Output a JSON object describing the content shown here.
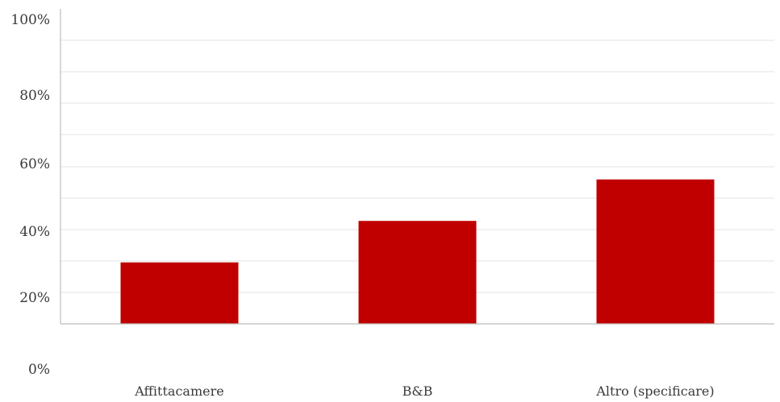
{
  "chart_data": {
    "type": "bar",
    "categories": [
      "Affittacamere",
      "B&B",
      "Altro (specificare)"
    ],
    "values": [
      30,
      43,
      56
    ],
    "ylim": [
      0,
      100
    ],
    "y_tick_labels": [
      "0%",
      "20%",
      "40%",
      "60%",
      "80%",
      "100%"
    ],
    "title": "",
    "xlabel": "",
    "ylabel": "",
    "bar_color": "#c00000",
    "grid": true,
    "legend": "none"
  }
}
